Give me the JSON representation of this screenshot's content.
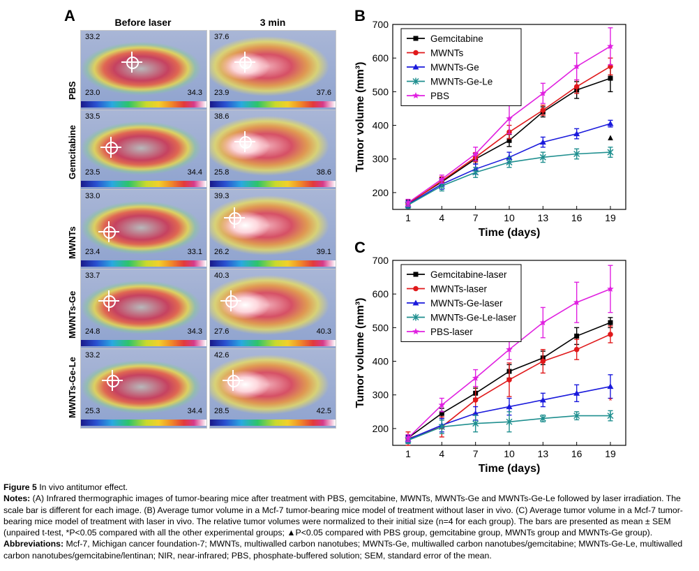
{
  "panelA": {
    "letter": "A",
    "col_before": "Before laser",
    "col_after": "3 min",
    "rows": [
      {
        "label": "PBS",
        "before": {
          "max": "33.2",
          "low": "23.0",
          "high": "34.3"
        },
        "after": {
          "max": "37.6",
          "low": "23.9",
          "high": "37.6"
        }
      },
      {
        "label": "Gemcitabine",
        "before": {
          "max": "33.5",
          "low": "23.5",
          "high": "34.4"
        },
        "after": {
          "max": "38.6",
          "low": "25.8",
          "high": "38.6"
        }
      },
      {
        "label": "MWNTs",
        "before": {
          "max": "33.0",
          "low": "23.4",
          "high": "33.1"
        },
        "after": {
          "max": "39.3",
          "low": "26.2",
          "high": "39.1"
        }
      },
      {
        "label": "MWNTs-Ge",
        "before": {
          "max": "33.7",
          "low": "24.8",
          "high": "34.3"
        },
        "after": {
          "max": "40.3",
          "low": "27.6",
          "high": "40.3"
        }
      },
      {
        "label": "MWNTs-Ge-Le",
        "before": {
          "max": "33.2",
          "low": "25.3",
          "high": "34.4"
        },
        "after": {
          "max": "42.6",
          "low": "28.5",
          "high": "42.5"
        }
      }
    ]
  },
  "chart_data": [
    {
      "panel": "B",
      "type": "line",
      "xlabel": "Time (days)",
      "ylabel": "Tumor volume (mm³)",
      "x": [
        1,
        4,
        7,
        10,
        13,
        16,
        19
      ],
      "ylim": [
        150,
        700
      ],
      "yticks": [
        200,
        300,
        400,
        500,
        600,
        700
      ],
      "legend_position": "top-left",
      "series": [
        {
          "name": "Gemcitabine",
          "color": "#000000",
          "marker": "square",
          "values": [
            168,
            232,
            300,
            355,
            440,
            505,
            540
          ],
          "err": [
            10,
            12,
            15,
            18,
            15,
            25,
            40
          ]
        },
        {
          "name": "MWNTs",
          "color": "#e0191b",
          "marker": "circle",
          "values": [
            166,
            235,
            305,
            380,
            445,
            515,
            575
          ],
          "err": [
            8,
            12,
            14,
            20,
            15,
            20,
            25
          ]
        },
        {
          "name": "MWNTs-Ge",
          "color": "#1a1adc",
          "marker": "triangle",
          "values": [
            165,
            225,
            270,
            305,
            350,
            375,
            405
          ],
          "err": [
            10,
            15,
            15,
            15,
            15,
            15,
            10
          ]
        },
        {
          "name": "MWNTs-Ge-Le",
          "color": "#1f8f8f",
          "marker": "x",
          "values": [
            163,
            220,
            260,
            290,
            305,
            315,
            320
          ],
          "err": [
            10,
            15,
            15,
            15,
            15,
            15,
            15
          ]
        },
        {
          "name": "PBS",
          "color": "#e020e0",
          "marker": "star",
          "values": [
            170,
            240,
            315,
            420,
            495,
            575,
            635
          ],
          "err": [
            10,
            12,
            20,
            45,
            30,
            40,
            55
          ]
        }
      ],
      "annotation": "▲"
    },
    {
      "panel": "C",
      "type": "line",
      "xlabel": "Time (days)",
      "ylabel": "Tumor volume (mm³)",
      "x": [
        1,
        4,
        7,
        10,
        13,
        16,
        19
      ],
      "ylim": [
        150,
        700
      ],
      "yticks": [
        200,
        300,
        400,
        500,
        600,
        700
      ],
      "legend_position": "top-left",
      "series": [
        {
          "name": "Gemcitabine-laser",
          "color": "#000000",
          "marker": "square",
          "values": [
            172,
            245,
            305,
            370,
            410,
            475,
            515
          ],
          "err": [
            8,
            15,
            15,
            20,
            20,
            25,
            15
          ]
        },
        {
          "name": "MWNTs-laser",
          "color": "#e0191b",
          "marker": "circle",
          "values": [
            170,
            205,
            285,
            345,
            400,
            435,
            480
          ],
          "err": [
            20,
            30,
            40,
            50,
            35,
            30,
            25
          ]
        },
        {
          "name": "MWNTs-Ge-laser",
          "color": "#1a1adc",
          "marker": "triangle",
          "values": [
            168,
            210,
            245,
            265,
            285,
            305,
            325
          ],
          "err": [
            10,
            20,
            20,
            25,
            20,
            25,
            35
          ]
        },
        {
          "name": "MWNTs-Ge-Le-laser",
          "color": "#1f8f8f",
          "marker": "x",
          "values": [
            165,
            205,
            215,
            220,
            230,
            238,
            238
          ],
          "err": [
            10,
            20,
            25,
            30,
            10,
            12,
            15
          ]
        },
        {
          "name": "PBS-laser",
          "color": "#e020e0",
          "marker": "star",
          "values": [
            172,
            270,
            350,
            435,
            515,
            575,
            615
          ],
          "err": [
            10,
            20,
            25,
            30,
            45,
            60,
            70
          ]
        }
      ],
      "annotation": "*"
    }
  ],
  "caption": {
    "fig_label": "Figure 5",
    "fig_title": " In vivo antitumor effect.",
    "notes_label": "Notes:",
    "notes_text": " (A) Infrared thermographic images of tumor-bearing mice after treatment with PBS, gemcitabine, MWNTs, MWNTs-Ge and MWNTs-Ge-Le followed by laser irradiation. The scale bar is different for each image. (B) Average tumor volume in a Mcf-7 tumor-bearing mice model of treatment without laser in vivo. (C) Average tumor volume in a Mcf-7 tumor-bearing mice model of treatment with laser in vivo. The relative tumor volumes were normalized to their initial size (n=4 for each group). The bars are presented as mean ± SEM (unpaired t-test, *P<0.05 compared with all the other experimental groups; ▲P<0.05 compared with PBS group, gemcitabine group, MWNTs group and MWNTs-Ge group).",
    "abbr_label": "Abbreviations:",
    "abbr_text": " Mcf-7, Michigan cancer foundation-7; MWNTs, multiwalled carbon nanotubes; MWNTs-Ge, multiwalled carbon nanotubes/gemcitabine; MWNTs-Ge-Le, multiwalled carbon nanotubes/gemcitabine/lentinan; NIR, near-infrared; PBS, phosphate-buffered solution; SEM, standard error of the mean."
  }
}
